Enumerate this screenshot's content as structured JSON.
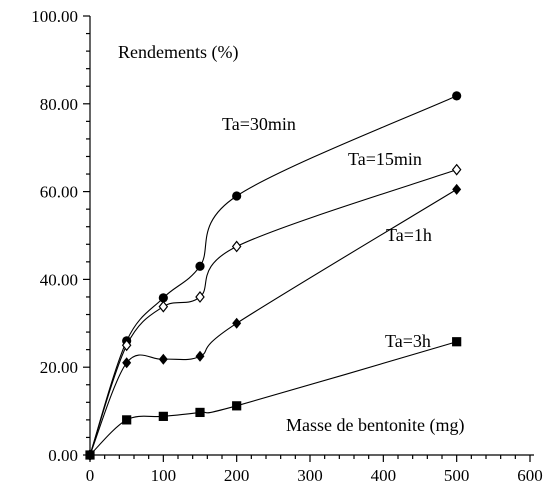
{
  "chart_data": {
    "type": "line",
    "xlabel": "Masse de bentonite (mg)",
    "ylabel": "Rendements (%)",
    "xlim": [
      0,
      600
    ],
    "ylim": [
      0,
      100
    ],
    "x_ticks": [
      "0",
      "100",
      "200",
      "300",
      "400",
      "500",
      "600"
    ],
    "y_ticks": [
      "0.00",
      "20.00",
      "40.00",
      "60.00",
      "80.00",
      "100.00"
    ],
    "grid": false,
    "legend": "none",
    "series": [
      {
        "name": "Ta=30min",
        "marker": "circle",
        "x": [
          0,
          50,
          100,
          150,
          200,
          500
        ],
        "y": [
          0,
          26,
          35.8,
          43,
          59,
          81.8
        ]
      },
      {
        "name": "Ta=15min",
        "marker": "diamond-open",
        "x": [
          0,
          50,
          100,
          150,
          200,
          500
        ],
        "y": [
          0,
          25,
          33.8,
          36,
          47.5,
          65
        ]
      },
      {
        "name": "Ta=1h",
        "marker": "diamond",
        "x": [
          0,
          50,
          100,
          150,
          200,
          500
        ],
        "y": [
          0,
          21,
          21.8,
          22.5,
          30,
          60.5
        ]
      },
      {
        "name": "Ta=3h",
        "marker": "square",
        "x": [
          0,
          50,
          100,
          150,
          200,
          500
        ],
        "y": [
          0,
          8,
          8.8,
          9.7,
          11.2,
          25.8
        ]
      }
    ]
  }
}
